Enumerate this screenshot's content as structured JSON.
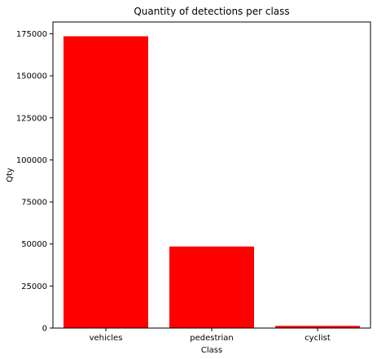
{
  "chart_data": {
    "type": "bar",
    "title": "Quantity of detections per class",
    "xlabel": "Class",
    "ylabel": "Qty",
    "categories": [
      "vehicles",
      "pedestrian",
      "cyclist"
    ],
    "values": [
      173500,
      48500,
      1300
    ],
    "ylim": [
      0,
      182000
    ],
    "yticks": [
      0,
      25000,
      50000,
      75000,
      100000,
      125000,
      150000,
      175000
    ],
    "ytick_labels": [
      "0",
      "25000",
      "50000",
      "75000",
      "100000",
      "125000",
      "150000",
      "175000"
    ],
    "bar_color": "#ff0000",
    "grid": false,
    "legend": "none"
  }
}
